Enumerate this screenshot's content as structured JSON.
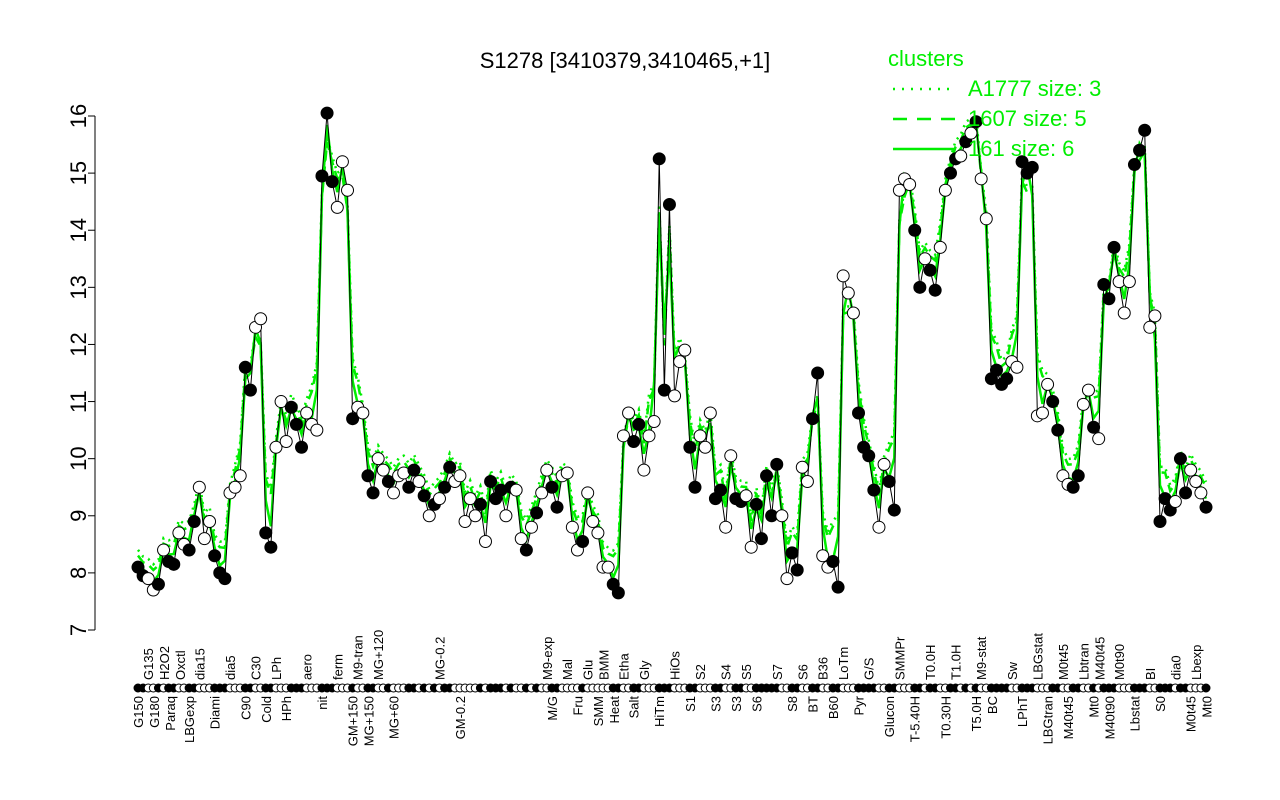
{
  "chart_data": {
    "type": "line",
    "title": "S1278 [3410379,3410465,+1]",
    "xlabel": "",
    "ylabel": "",
    "ylim": [
      7,
      16
    ],
    "yticks": [
      7,
      8,
      9,
      10,
      11,
      12,
      13,
      14,
      15,
      16
    ],
    "grid": false,
    "legend": {
      "title": "clusters",
      "placement": "top-right",
      "entries": [
        {
          "label": "A1777 size: 3",
          "style": "dotted"
        },
        {
          "label": "1607 size: 5",
          "style": "dashed"
        },
        {
          "label": "161 size: 6",
          "style": "solid"
        }
      ]
    },
    "colors": {
      "data": "#000000",
      "clusters": "#00ee00"
    },
    "points": [
      [
        "G150",
        8.1,
        1
      ],
      [
        "",
        7.95,
        1
      ],
      [
        "G135",
        7.9,
        0
      ],
      [
        "G180",
        7.7,
        0
      ],
      [
        "",
        7.8,
        1
      ],
      [
        "H2O2",
        8.4,
        0
      ],
      [
        "Paraq",
        8.2,
        1
      ],
      [
        "",
        8.15,
        1
      ],
      [
        "Oxctl",
        8.7,
        0
      ],
      [
        "",
        8.5,
        0
      ],
      [
        "LBGexp",
        8.4,
        1
      ],
      [
        "",
        8.9,
        1
      ],
      [
        "dia15",
        9.5,
        0
      ],
      [
        "",
        8.6,
        0
      ],
      [
        "",
        8.9,
        0
      ],
      [
        "Diami",
        8.3,
        1
      ],
      [
        "",
        8.0,
        1
      ],
      [
        "",
        7.9,
        1
      ],
      [
        "dia5",
        9.4,
        0
      ],
      [
        "",
        9.5,
        0
      ],
      [
        "",
        9.7,
        0
      ],
      [
        "C90",
        11.6,
        1
      ],
      [
        "",
        11.2,
        1
      ],
      [
        "C30",
        12.3,
        0
      ],
      [
        "",
        12.45,
        0
      ],
      [
        "Cold",
        8.7,
        1
      ],
      [
        "",
        8.45,
        1
      ],
      [
        "LPh",
        10.2,
        0
      ],
      [
        "",
        11.0,
        0
      ],
      [
        "HPh",
        10.3,
        0
      ],
      [
        "",
        10.9,
        1
      ],
      [
        "",
        10.6,
        1
      ],
      [
        "",
        10.2,
        1
      ],
      [
        "aero",
        10.8,
        0
      ],
      [
        "",
        10.6,
        0
      ],
      [
        "",
        10.5,
        0
      ],
      [
        "nit",
        14.95,
        1
      ],
      [
        "",
        16.05,
        1
      ],
      [
        "",
        14.85,
        1
      ],
      [
        "ferm",
        14.4,
        0
      ],
      [
        "",
        15.2,
        0
      ],
      [
        "",
        14.7,
        0
      ],
      [
        "GM+150",
        10.7,
        1
      ],
      [
        "M9-tran",
        10.9,
        0
      ],
      [
        "",
        10.8,
        0
      ],
      [
        "MG+150",
        9.7,
        1
      ],
      [
        "",
        9.4,
        1
      ],
      [
        "MG+120",
        10.0,
        0
      ],
      [
        "",
        9.8,
        0
      ],
      [
        "",
        9.6,
        1
      ],
      [
        "MG+60",
        9.4,
        0
      ],
      [
        "",
        9.7,
        0
      ],
      [
        "",
        9.75,
        0
      ],
      [
        "",
        9.5,
        1
      ],
      [
        "",
        9.8,
        1
      ],
      [
        "",
        9.6,
        0
      ],
      [
        "",
        9.35,
        1
      ],
      [
        "",
        9.0,
        0
      ],
      [
        "",
        9.2,
        1
      ],
      [
        "MG-0.2",
        9.3,
        0
      ],
      [
        "",
        9.5,
        1
      ],
      [
        "",
        9.85,
        1
      ],
      [
        "",
        9.6,
        0
      ],
      [
        "GM-0.2",
        9.7,
        0
      ],
      [
        "",
        8.9,
        0
      ],
      [
        "",
        9.3,
        0
      ],
      [
        "",
        9.0,
        0
      ],
      [
        "",
        9.2,
        1
      ],
      [
        "",
        8.55,
        0
      ],
      [
        "",
        9.6,
        1
      ],
      [
        "",
        9.3,
        1
      ],
      [
        "",
        9.45,
        1
      ],
      [
        "",
        9.0,
        0
      ],
      [
        "",
        9.5,
        1
      ],
      [
        "",
        9.45,
        0
      ],
      [
        "",
        8.6,
        0
      ],
      [
        "",
        8.4,
        1
      ],
      [
        "",
        8.8,
        0
      ],
      [
        "",
        9.05,
        1
      ],
      [
        "",
        9.4,
        0
      ],
      [
        "M9-exp",
        9.8,
        0
      ],
      [
        "M/G",
        9.5,
        1
      ],
      [
        "",
        9.15,
        1
      ],
      [
        "",
        9.7,
        0
      ],
      [
        "Mal",
        9.75,
        0
      ],
      [
        "",
        8.8,
        0
      ],
      [
        "Fru",
        8.4,
        0
      ],
      [
        "",
        8.55,
        1
      ],
      [
        "Glu",
        9.4,
        0
      ],
      [
        "",
        8.9,
        0
      ],
      [
        "SMM",
        8.7,
        0
      ],
      [
        "BMM",
        8.1,
        0
      ],
      [
        "",
        8.1,
        0
      ],
      [
        "Heat",
        7.8,
        1
      ],
      [
        "",
        7.65,
        1
      ],
      [
        "Etha",
        10.4,
        0
      ],
      [
        "",
        10.8,
        0
      ],
      [
        "Salt",
        10.3,
        1
      ],
      [
        "",
        10.6,
        1
      ],
      [
        "Gly",
        9.8,
        0
      ],
      [
        "",
        10.4,
        0
      ],
      [
        "",
        10.65,
        0
      ],
      [
        "HiTm",
        15.25,
        1
      ],
      [
        "",
        11.2,
        1
      ],
      [
        "",
        14.45,
        1
      ],
      [
        "HiOs",
        11.1,
        0
      ],
      [
        "",
        11.7,
        0
      ],
      [
        "",
        11.9,
        0
      ],
      [
        "S1",
        10.2,
        1
      ],
      [
        "",
        9.5,
        1
      ],
      [
        "S2",
        10.4,
        0
      ],
      [
        "",
        10.2,
        0
      ],
      [
        "",
        10.8,
        0
      ],
      [
        "S3",
        9.3,
        1
      ],
      [
        "",
        9.45,
        1
      ],
      [
        "S4",
        8.8,
        0
      ],
      [
        "",
        10.05,
        0
      ],
      [
        "S3",
        9.3,
        1
      ],
      [
        "",
        9.25,
        1
      ],
      [
        "S5",
        9.35,
        0
      ],
      [
        "",
        8.45,
        0
      ],
      [
        "S6",
        9.2,
        1
      ],
      [
        "",
        8.6,
        1
      ],
      [
        "",
        9.7,
        1
      ],
      [
        "",
        9.0,
        1
      ],
      [
        "S7",
        9.9,
        1
      ],
      [
        "",
        9.0,
        0
      ],
      [
        "",
        7.9,
        0
      ],
      [
        "S8",
        8.35,
        1
      ],
      [
        "",
        8.05,
        1
      ],
      [
        "S6",
        9.85,
        0
      ],
      [
        "",
        9.6,
        0
      ],
      [
        "BT",
        10.7,
        1
      ],
      [
        "",
        11.5,
        1
      ],
      [
        "B36",
        8.3,
        0
      ],
      [
        "",
        8.1,
        0
      ],
      [
        "B60",
        8.2,
        1
      ],
      [
        "",
        7.75,
        1
      ],
      [
        "LoTm",
        13.2,
        0
      ],
      [
        "",
        12.9,
        0
      ],
      [
        "",
        12.55,
        0
      ],
      [
        "Pyr",
        10.8,
        1
      ],
      [
        "",
        10.2,
        1
      ],
      [
        "G/S",
        10.05,
        1
      ],
      [
        "",
        9.45,
        1
      ],
      [
        "",
        8.8,
        0
      ],
      [
        "",
        9.9,
        0
      ],
      [
        "Glucon",
        9.6,
        1
      ],
      [
        "",
        9.1,
        1
      ],
      [
        "SMMPr",
        14.7,
        0
      ],
      [
        "",
        14.9,
        0
      ],
      [
        "",
        14.8,
        0
      ],
      [
        "T-5.40H",
        14.0,
        1
      ],
      [
        "",
        13.0,
        1
      ],
      [
        "",
        13.5,
        0
      ],
      [
        "T0.0H",
        13.3,
        1
      ],
      [
        "",
        12.95,
        1
      ],
      [
        "",
        13.7,
        0
      ],
      [
        "T0.30H",
        14.7,
        0
      ],
      [
        "",
        15.0,
        1
      ],
      [
        "T1.0H",
        15.25,
        1
      ],
      [
        "",
        15.3,
        0
      ],
      [
        "",
        15.55,
        1
      ],
      [
        "",
        15.7,
        0
      ],
      [
        "T5.0H",
        15.9,
        1
      ],
      [
        "M9-stat",
        14.9,
        0
      ],
      [
        "",
        14.2,
        0
      ],
      [
        "BC",
        11.4,
        1
      ],
      [
        "",
        11.55,
        1
      ],
      [
        "",
        11.3,
        1
      ],
      [
        "",
        11.4,
        1
      ],
      [
        "Sw",
        11.7,
        0
      ],
      [
        "",
        11.6,
        0
      ],
      [
        "LPhT",
        15.2,
        1
      ],
      [
        "",
        15.0,
        1
      ],
      [
        "",
        15.1,
        1
      ],
      [
        "LBGstat",
        10.75,
        0
      ],
      [
        "",
        10.8,
        0
      ],
      [
        "LBGtran",
        11.3,
        0
      ],
      [
        "",
        11.0,
        1
      ],
      [
        "",
        10.5,
        1
      ],
      [
        "M0t45",
        9.7,
        0
      ],
      [
        "M40t45",
        9.55,
        0
      ],
      [
        "",
        9.5,
        1
      ],
      [
        "",
        9.7,
        1
      ],
      [
        "Lbtran",
        10.95,
        0
      ],
      [
        "",
        11.2,
        0
      ],
      [
        "Mt0",
        10.55,
        1
      ],
      [
        "M40t45",
        10.35,
        0
      ],
      [
        "M40t90",
        13.05,
        1
      ],
      [
        "",
        12.8,
        1
      ],
      [
        "",
        13.7,
        1
      ],
      [
        "M0t90",
        13.1,
        0
      ],
      [
        "",
        12.55,
        0
      ],
      [
        "",
        13.1,
        0
      ],
      [
        "Lbstat",
        15.15,
        1
      ],
      [
        "",
        15.4,
        1
      ],
      [
        "",
        15.75,
        1
      ],
      [
        "BI",
        12.3,
        0
      ],
      [
        "",
        12.5,
        0
      ],
      [
        "S0",
        8.9,
        1
      ],
      [
        "",
        9.3,
        1
      ],
      [
        "",
        9.1,
        1
      ],
      [
        "dia0",
        9.25,
        0
      ],
      [
        "",
        10.0,
        1
      ],
      [
        "",
        9.4,
        1
      ],
      [
        "M0t45",
        9.8,
        0
      ],
      [
        "Lbexp",
        9.6,
        0
      ],
      [
        "Mt0",
        9.4,
        0
      ],
      [
        "",
        9.15,
        1
      ]
    ]
  }
}
